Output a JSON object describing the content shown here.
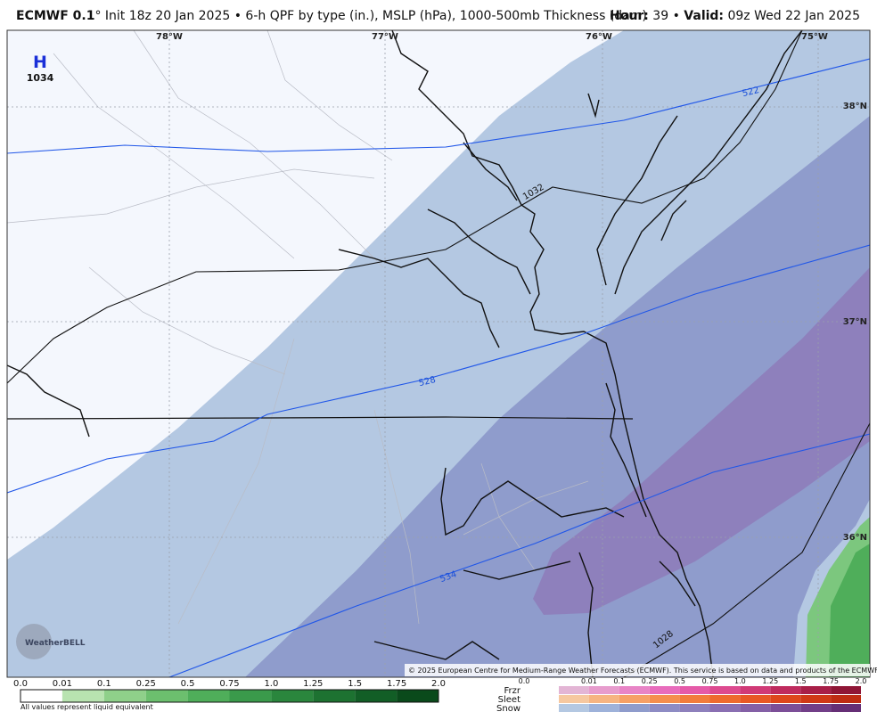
{
  "header": {
    "model": "ECMWF 0.1",
    "description": "° Init 18z 20 Jan 2025 • 6-h QPF by type (in.), MSLP (hPa), 1000-500mb Thickness (dam)",
    "hour_label": "Hour:",
    "hour_value": " 39 • ",
    "valid_label": "Valid:",
    "valid_value": " 09z Wed 22 Jan 2025"
  },
  "map": {
    "longitudes": [
      "78°W",
      "77°W",
      "76°W",
      "75°W"
    ],
    "latitudes": [
      "38°N",
      "37°N",
      "36°N"
    ],
    "high_symbol": "H",
    "high_pressure": "1034",
    "thickness_labels": [
      "522",
      "528",
      "534"
    ],
    "isobar_labels": [
      "1032",
      "1028"
    ],
    "logo": "WeatherBELL",
    "copyright": "© 2025 European Centre for Medium-Range Weather Forecasts (ECMWF). This service is based on data and products of the ECMWF."
  },
  "legend": {
    "rain_scale": [
      "0.0",
      "0.01",
      "0.1",
      "0.25",
      "0.5",
      "0.75",
      "1.0",
      "1.25",
      "1.5",
      "1.75",
      "2.0"
    ],
    "rain_colors": [
      "#ffffff",
      "#b8e3b0",
      "#8fd08a",
      "#6cbf6e",
      "#4fae5a",
      "#3a9a4b",
      "#2a863d",
      "#1d7231",
      "#125e26",
      "#0a4a1b"
    ],
    "note": "All values represent liquid equivalent",
    "ptype_scale": [
      "0.0",
      "0.01",
      "0.1",
      "0.25",
      "0.5",
      "0.75",
      "1.0",
      "1.25",
      "1.5",
      "1.75",
      "2.0"
    ],
    "ptype_rows": [
      {
        "name": "Frzr",
        "colors": [
          "#e3b5d5",
          "#e79ccd",
          "#e884c6",
          "#e86cbc",
          "#e55aa8",
          "#dd4a8f",
          "#d03a76",
          "#bf2b5e",
          "#a81f48",
          "#8f1636"
        ]
      },
      {
        "name": "Sleet",
        "colors": [
          "#f6c8a0",
          "#f6b482",
          "#f6a066",
          "#f58e4e",
          "#f27c3c",
          "#ee6a2e",
          "#e85824",
          "#de471c",
          "#d03916",
          "#bf2c12"
        ]
      },
      {
        "name": "Snow",
        "colors": [
          "#b4c8e2",
          "#9eb2da",
          "#8f9ccc",
          "#8e8cc4",
          "#8e80bc",
          "#8a6fb2",
          "#8460a6",
          "#7c4f98",
          "#723f88",
          "#662f76"
        ]
      }
    ]
  }
}
